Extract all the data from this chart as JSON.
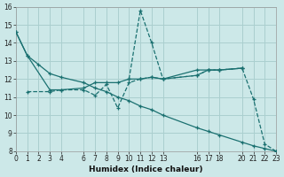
{
  "xlabel": "Humidex (Indice chaleur)",
  "bg_color": "#cce8e8",
  "grid_color": "#aacfcf",
  "line_color": "#1a7070",
  "series": [
    {
      "x": [
        0,
        1,
        2,
        3,
        4,
        6,
        7,
        8,
        9,
        10,
        11,
        12,
        13,
        16,
        17,
        18,
        20,
        21,
        22,
        23
      ],
      "y": [
        14.6,
        13.3,
        12.8,
        12.3,
        12.1,
        11.8,
        11.5,
        11.3,
        11.0,
        10.8,
        10.5,
        10.3,
        10.0,
        9.3,
        9.1,
        8.9,
        8.5,
        8.3,
        8.15,
        8.0
      ]
    },
    {
      "x": [
        1,
        3,
        4,
        6,
        7,
        8,
        9,
        10,
        11,
        12,
        13,
        16,
        17,
        18,
        20
      ],
      "y": [
        11.3,
        11.3,
        11.4,
        11.4,
        11.1,
        11.7,
        10.4,
        11.8,
        12.0,
        12.1,
        12.0,
        12.2,
        12.5,
        12.5,
        12.6
      ]
    },
    {
      "x": [
        10,
        11,
        12,
        13,
        16,
        17,
        18,
        20,
        21,
        22,
        23
      ],
      "y": [
        12.0,
        15.8,
        14.0,
        12.0,
        12.2,
        12.5,
        12.5,
        12.6,
        10.9,
        8.4,
        8.0
      ]
    },
    {
      "x": [
        0,
        1,
        3,
        4,
        6,
        7,
        8,
        9,
        10,
        11,
        12,
        13,
        16,
        17,
        18,
        20
      ],
      "y": [
        14.6,
        13.3,
        11.4,
        11.4,
        11.5,
        11.8,
        11.8,
        11.8,
        12.0,
        12.0,
        12.1,
        12.0,
        12.5,
        12.5,
        12.5,
        12.6
      ]
    }
  ],
  "xlim": [
    0,
    23
  ],
  "ylim": [
    8,
    16
  ],
  "yticks": [
    8,
    9,
    10,
    11,
    12,
    13,
    14,
    15,
    16
  ],
  "xticks": [
    0,
    1,
    2,
    3,
    4,
    6,
    7,
    8,
    9,
    10,
    11,
    12,
    13,
    16,
    17,
    18,
    20,
    21,
    22,
    23
  ]
}
